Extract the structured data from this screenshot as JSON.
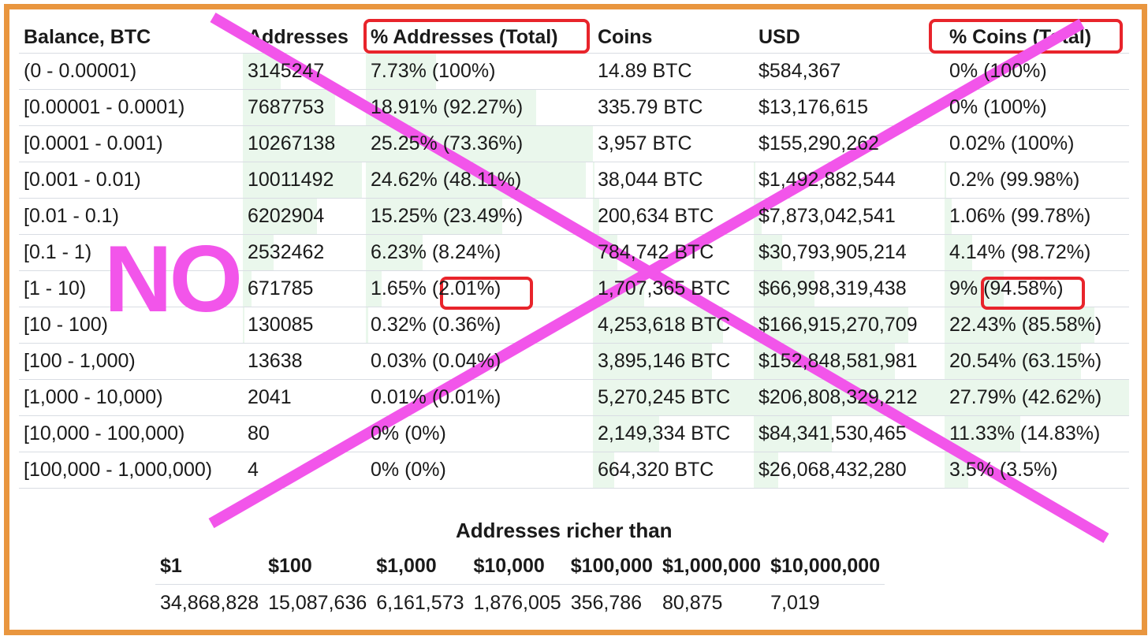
{
  "table": {
    "headers": [
      "Balance, BTC",
      "Addresses",
      "% Addresses (Total)",
      "Coins",
      "USD",
      "% Coins (Total)"
    ],
    "rows": [
      {
        "balance": "(0 - 0.00001)",
        "addresses": "3145247",
        "pct_addresses": "7.73% (100%)",
        "coins": "14.89 BTC",
        "usd": "$584,367",
        "pct_coins": "0% (100%)",
        "fill_addresses": 0.31,
        "fill_pct_addresses": 0.31,
        "fill_coins": 0.0,
        "fill_usd": 0.0,
        "fill_pct_coins": 0.0
      },
      {
        "balance": "[0.00001 - 0.0001)",
        "addresses": "7687753",
        "pct_addresses": "18.91% (92.27%)",
        "coins": "335.79 BTC",
        "usd": "$13,176,615",
        "pct_coins": "0% (100%)",
        "fill_addresses": 0.75,
        "fill_pct_addresses": 0.75,
        "fill_coins": 0.0,
        "fill_usd": 0.0,
        "fill_pct_coins": 0.0
      },
      {
        "balance": "[0.0001 - 0.001)",
        "addresses": "10267138",
        "pct_addresses": "25.25% (73.36%)",
        "coins": "3,957 BTC",
        "usd": "$155,290,262",
        "pct_coins": "0.02% (100%)",
        "fill_addresses": 1.0,
        "fill_pct_addresses": 1.0,
        "fill_coins": 0.0,
        "fill_usd": 0.0,
        "fill_pct_coins": 0.0
      },
      {
        "balance": "[0.001 - 0.01)",
        "addresses": "10011492",
        "pct_addresses": "24.62% (48.11%)",
        "coins": "38,044 BTC",
        "usd": "$1,492,882,544",
        "pct_coins": "0.2% (99.98%)",
        "fill_addresses": 0.97,
        "fill_pct_addresses": 0.97,
        "fill_coins": 0.01,
        "fill_usd": 0.01,
        "fill_pct_coins": 0.01
      },
      {
        "balance": "[0.01 - 0.1)",
        "addresses": "6202904",
        "pct_addresses": "15.25% (23.49%)",
        "coins": "200,634 BTC",
        "usd": "$7,873,042,541",
        "pct_coins": "1.06% (99.78%)",
        "fill_addresses": 0.6,
        "fill_pct_addresses": 0.6,
        "fill_coins": 0.04,
        "fill_usd": 0.04,
        "fill_pct_coins": 0.04
      },
      {
        "balance": "[0.1 - 1)",
        "addresses": "2532462",
        "pct_addresses": "6.23% (8.24%)",
        "coins": "784,742 BTC",
        "usd": "$30,793,905,214",
        "pct_coins": "4.14% (98.72%)",
        "fill_addresses": 0.25,
        "fill_pct_addresses": 0.25,
        "fill_coins": 0.15,
        "fill_usd": 0.15,
        "fill_pct_coins": 0.15
      },
      {
        "balance": "[1 - 10)",
        "addresses": "671785",
        "pct_addresses": "1.65% (2.01%)",
        "coins": "1,707,365 BTC",
        "usd": "$66,998,319,438",
        "pct_coins": "9% (94.58%)",
        "fill_addresses": 0.07,
        "fill_pct_addresses": 0.07,
        "fill_coins": 0.32,
        "fill_usd": 0.32,
        "fill_pct_coins": 0.32
      },
      {
        "balance": "[10 - 100)",
        "addresses": "130085",
        "pct_addresses": "0.32% (0.36%)",
        "coins": "4,253,618 BTC",
        "usd": "$166,915,270,709",
        "pct_coins": "22.43% (85.58%)",
        "fill_addresses": 0.01,
        "fill_pct_addresses": 0.01,
        "fill_coins": 0.81,
        "fill_usd": 0.81,
        "fill_pct_coins": 0.81
      },
      {
        "balance": "[100 - 1,000)",
        "addresses": "13638",
        "pct_addresses": "0.03% (0.04%)",
        "coins": "3,895,146 BTC",
        "usd": "$152,848,581,981",
        "pct_coins": "20.54% (63.15%)",
        "fill_addresses": 0.0,
        "fill_pct_addresses": 0.0,
        "fill_coins": 0.74,
        "fill_usd": 0.74,
        "fill_pct_coins": 0.74
      },
      {
        "balance": "[1,000 - 10,000)",
        "addresses": "2041",
        "pct_addresses": "0.01% (0.01%)",
        "coins": "5,270,245 BTC",
        "usd": "$206,808,329,212",
        "pct_coins": "27.79% (42.62%)",
        "fill_addresses": 0.0,
        "fill_pct_addresses": 0.0,
        "fill_coins": 1.0,
        "fill_usd": 1.0,
        "fill_pct_coins": 1.0
      },
      {
        "balance": "[10,000 - 100,000)",
        "addresses": "80",
        "pct_addresses": "0% (0%)",
        "coins": "2,149,334 BTC",
        "usd": "$84,341,530,465",
        "pct_coins": "11.33% (14.83%)",
        "fill_addresses": 0.0,
        "fill_pct_addresses": 0.0,
        "fill_coins": 0.41,
        "fill_usd": 0.41,
        "fill_pct_coins": 0.41
      },
      {
        "balance": "[100,000 - 1,000,000)",
        "addresses": "4",
        "pct_addresses": "0% (0%)",
        "coins": "664,320 BTC",
        "usd": "$26,068,432,280",
        "pct_coins": "3.5% (3.5%)",
        "fill_addresses": 0.0,
        "fill_pct_addresses": 0.0,
        "fill_coins": 0.13,
        "fill_usd": 0.13,
        "fill_pct_coins": 0.13
      }
    ]
  },
  "richer": {
    "title": "Addresses richer than",
    "headers": [
      "$1",
      "$100",
      "$1,000",
      "$10,000",
      "$100,000",
      "$1,000,000",
      "$10,000,000"
    ],
    "values": [
      "34,868,828",
      "15,087,636",
      "6,161,573",
      "1,876,005",
      "356,786",
      "80,875",
      "7,019"
    ]
  },
  "overlay": {
    "no_text": "NO",
    "color": "#f255ea",
    "highlight_color": "#e8242b"
  },
  "colors": {
    "frame": "#e9963f",
    "bar_fill": "#eaf7ec"
  }
}
